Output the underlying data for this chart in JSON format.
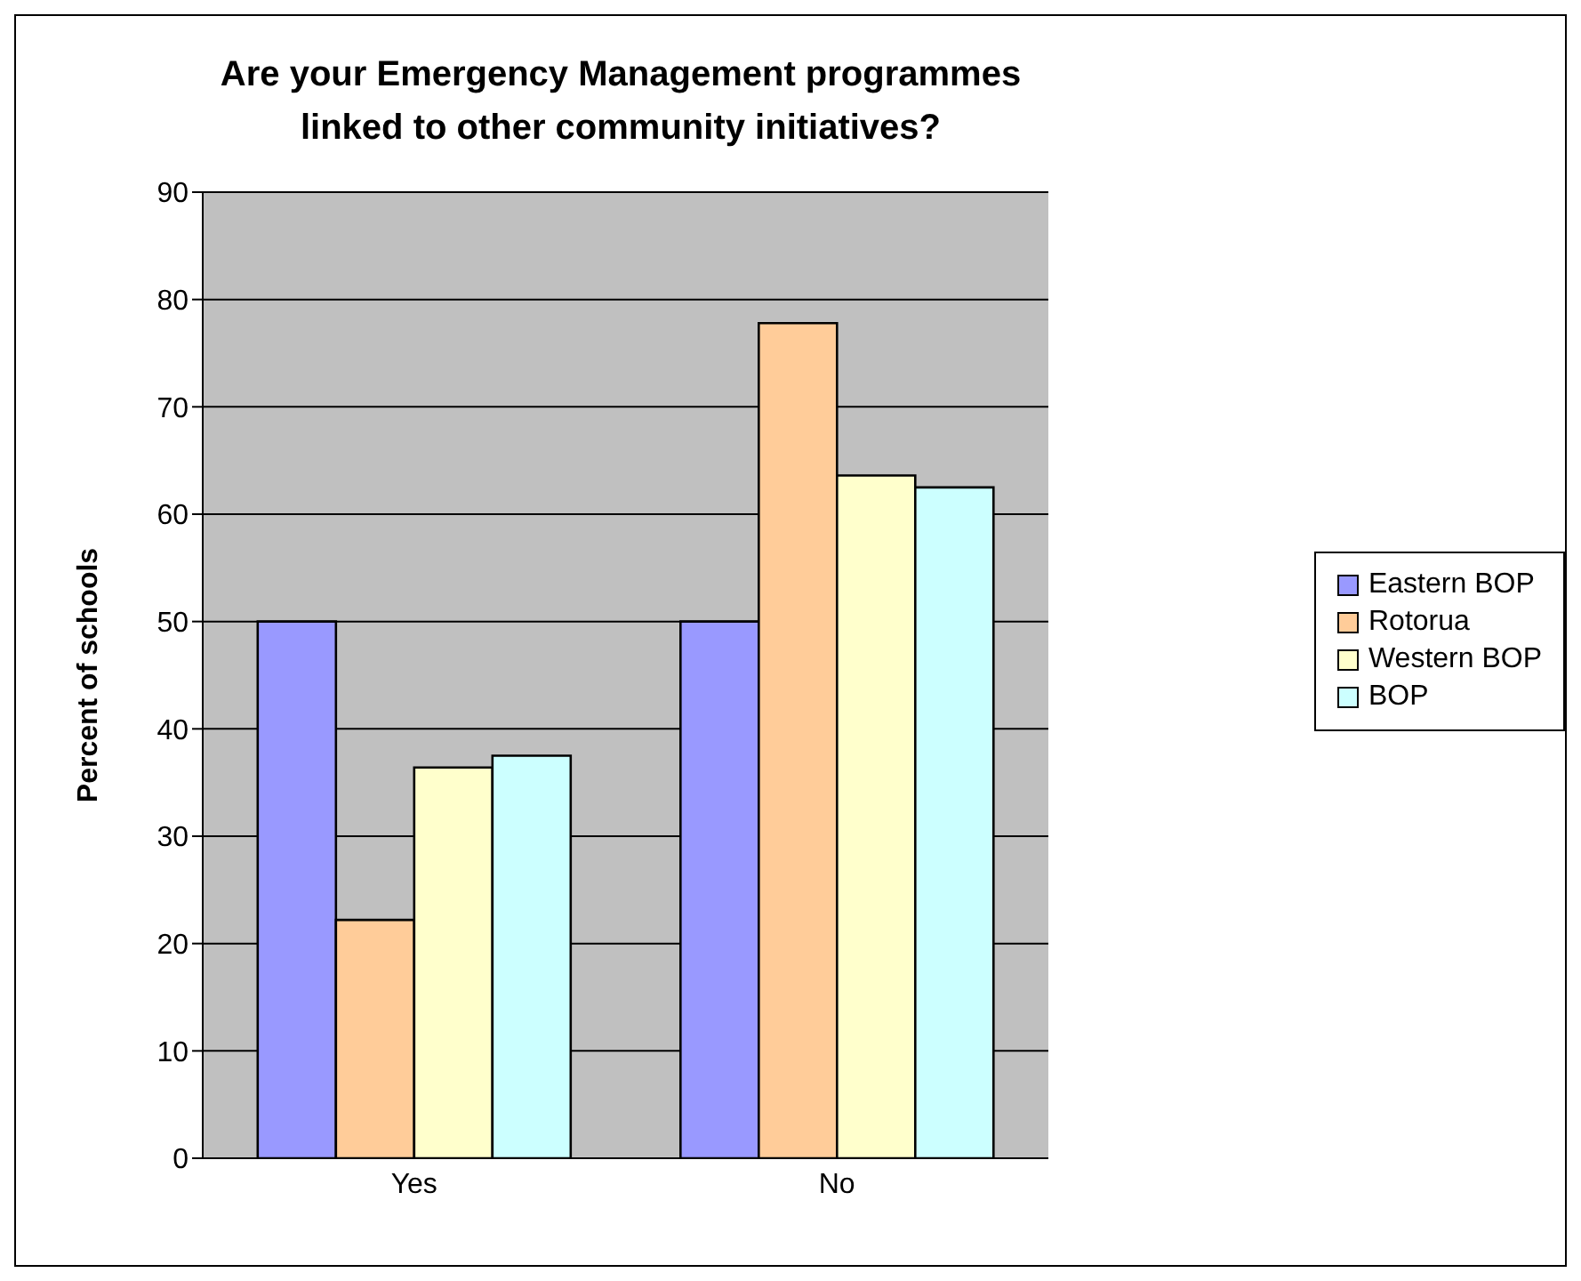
{
  "chart_data": {
    "type": "bar",
    "title": "Are your Emergency Management programmes\nlinked to other community initiatives?",
    "ylabel": "Percent of schools",
    "categories": [
      "Yes",
      "No"
    ],
    "series": [
      {
        "name": "Eastern BOP",
        "color": "#9999ff",
        "values": [
          50,
          50
        ]
      },
      {
        "name": "Rotorua",
        "color": "#ffcc99",
        "values": [
          22.2,
          77.8
        ]
      },
      {
        "name": "Western BOP",
        "color": "#ffffcc",
        "values": [
          36.4,
          63.6
        ]
      },
      {
        "name": "BOP",
        "color": "#ccffff",
        "values": [
          37.5,
          62.5
        ]
      }
    ],
    "ylim": [
      0,
      90
    ],
    "yticks": [
      0,
      10,
      20,
      30,
      40,
      50,
      60,
      70,
      80,
      90
    ],
    "grid": "y",
    "legend": "right"
  }
}
